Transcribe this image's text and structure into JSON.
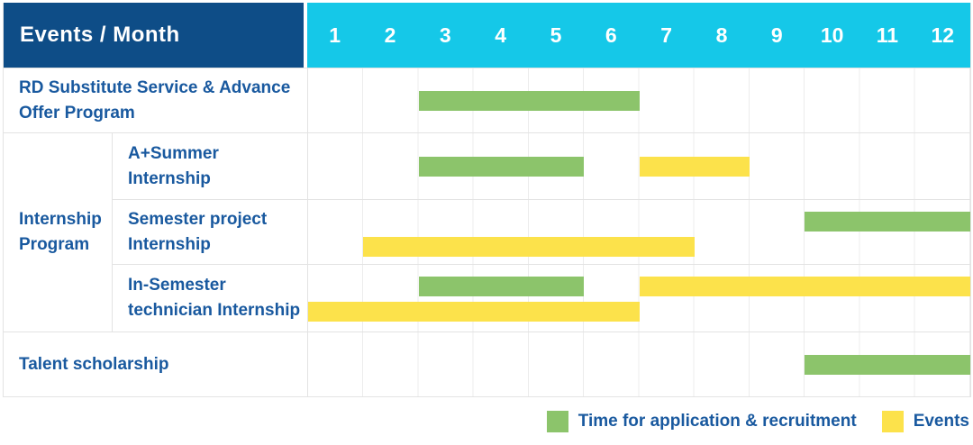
{
  "table": {
    "corner_label": "Events / Month",
    "months": [
      "1",
      "2",
      "3",
      "4",
      "5",
      "6",
      "7",
      "8",
      "9",
      "10",
      "11",
      "12"
    ]
  },
  "body": {
    "rows": [
      {
        "label": "RD Substitute Service & Advance Offer Program",
        "bars": [
          {
            "color": "green",
            "from": 3,
            "to": 6,
            "lane": "middle"
          }
        ]
      },
      {
        "group_label": "Internship Program",
        "children": [
          {
            "label": "A+Summer Internship",
            "bars": [
              {
                "color": "green",
                "from": 3,
                "to": 5,
                "lane": "middle"
              },
              {
                "color": "yellow",
                "from": 7,
                "to": 8,
                "lane": "middle"
              }
            ]
          },
          {
            "label": "Semester project Internship",
            "bars": [
              {
                "color": "green",
                "from": 10,
                "to": 12,
                "lane": "top"
              },
              {
                "color": "yellow",
                "from": 2,
                "to": 7,
                "lane": "bottom"
              }
            ]
          },
          {
            "label": "In-Semester technician Internship",
            "bars": [
              {
                "color": "green",
                "from": 3,
                "to": 5,
                "lane": "top"
              },
              {
                "color": "yellow",
                "from": 7,
                "to": 12,
                "lane": "top"
              },
              {
                "color": "yellow",
                "from": 1,
                "to": 6,
                "lane": "bottom"
              }
            ]
          }
        ]
      },
      {
        "label": "Talent scholarship",
        "bars": [
          {
            "color": "green",
            "from": 10,
            "to": 12,
            "lane": "middle"
          }
        ]
      }
    ]
  },
  "legend": {
    "items": [
      {
        "label": "Time for application & recruitment",
        "color": "#8cc46b"
      },
      {
        "label": "Events",
        "color": "#fce24b"
      }
    ]
  },
  "colors": {
    "header_bg": "#0e4d87",
    "month_header_bg": "#15c8e8",
    "label_text": "#19599f",
    "green": "#8cc46b",
    "yellow": "#fce24b",
    "grid_border": "#e3e3e3",
    "column_line": "#ececec"
  },
  "chart_data": {
    "type": "gantt",
    "title": "Events / Month",
    "x_axis": {
      "label": "Month",
      "ticks": [
        1,
        2,
        3,
        4,
        5,
        6,
        7,
        8,
        9,
        10,
        11,
        12
      ],
      "range": [
        1,
        12
      ]
    },
    "legend_position": "bottom-right",
    "grid": true,
    "legend": [
      {
        "label": "Time for application & recruitment",
        "color": "#8cc46b"
      },
      {
        "label": "Events",
        "color": "#fce24b"
      }
    ],
    "tasks": [
      {
        "name": "RD Substitute Service & Advance Offer Program",
        "group": null,
        "spans": [
          {
            "category": "Time for application & recruitment",
            "from_month": 3,
            "to_month": 6
          }
        ]
      },
      {
        "name": "A+Summer Internship",
        "group": "Internship Program",
        "spans": [
          {
            "category": "Time for application & recruitment",
            "from_month": 3,
            "to_month": 5
          },
          {
            "category": "Events",
            "from_month": 7,
            "to_month": 8
          }
        ]
      },
      {
        "name": "Semester project Internship",
        "group": "Internship Program",
        "spans": [
          {
            "category": "Time for application & recruitment",
            "from_month": 10,
            "to_month": 12
          },
          {
            "category": "Events",
            "from_month": 2,
            "to_month": 7
          }
        ]
      },
      {
        "name": "In-Semester technician Internship",
        "group": "Internship Program",
        "spans": [
          {
            "category": "Time for application & recruitment",
            "from_month": 3,
            "to_month": 5
          },
          {
            "category": "Events",
            "from_month": 7,
            "to_month": 12
          },
          {
            "category": "Events",
            "from_month": 1,
            "to_month": 6
          }
        ]
      },
      {
        "name": "Talent scholarship",
        "group": null,
        "spans": [
          {
            "category": "Time for application & recruitment",
            "from_month": 10,
            "to_month": 12
          }
        ]
      }
    ]
  }
}
